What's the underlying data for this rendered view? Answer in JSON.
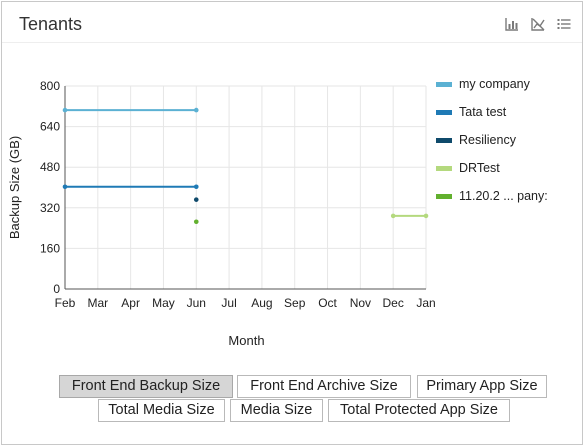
{
  "panel": {
    "title": "Tenants",
    "icons": [
      "bar-chart-icon",
      "chart-off-icon",
      "list-icon"
    ]
  },
  "chart_data": {
    "type": "line",
    "title": "",
    "xlabel": "Month",
    "ylabel": "Backup Size (GB)",
    "categories": [
      "Feb",
      "Mar",
      "Apr",
      "May",
      "Jun",
      "Jul",
      "Aug",
      "Sep",
      "Oct",
      "Nov",
      "Dec",
      "Jan"
    ],
    "yticks": [
      0,
      160,
      320,
      480,
      640,
      800
    ],
    "ylim": [
      0,
      800
    ],
    "grid": true,
    "legend_position": "right",
    "series": [
      {
        "name": "my company",
        "color": "#5bb1d3",
        "values": [
          705,
          null,
          null,
          null,
          705,
          null,
          null,
          null,
          null,
          null,
          null,
          null
        ]
      },
      {
        "name": "Tata test",
        "color": "#1f7ab5",
        "values": [
          403,
          null,
          null,
          null,
          403,
          null,
          null,
          null,
          null,
          null,
          null,
          null
        ]
      },
      {
        "name": "Resiliency",
        "color": "#0f4a6b",
        "values": [
          null,
          null,
          null,
          null,
          352,
          null,
          null,
          null,
          null,
          null,
          null,
          null
        ]
      },
      {
        "name": "DRTest",
        "color": "#b4d97e",
        "values": [
          null,
          null,
          null,
          null,
          null,
          null,
          null,
          null,
          null,
          null,
          288,
          288
        ]
      },
      {
        "name": "11.20.2 ... pany:",
        "color": "#62b02e",
        "values": [
          null,
          null,
          null,
          null,
          265,
          null,
          null,
          null,
          null,
          null,
          null,
          null
        ]
      }
    ]
  },
  "metrics": {
    "row1": [
      "Front End Backup Size",
      "Front End Archive Size",
      "Primary App Size"
    ],
    "row2": [
      "Total Media Size",
      "Media Size",
      "Total Protected App Size"
    ],
    "selected": "Front End Backup Size"
  }
}
